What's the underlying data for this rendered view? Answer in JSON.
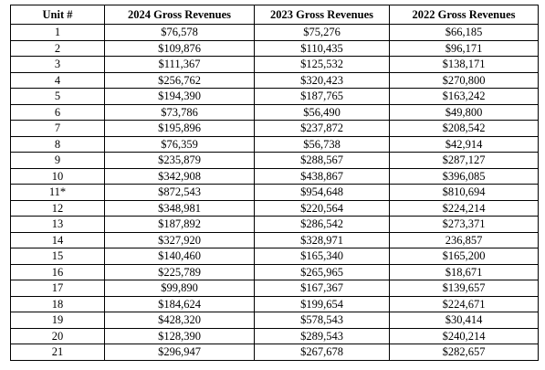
{
  "table": {
    "headers": [
      "Unit #",
      "2024 Gross Revenues",
      "2023 Gross Revenues",
      "2022 Gross Revenues"
    ],
    "rows": [
      [
        "1",
        "$76,578",
        "$75,276",
        "$66,185"
      ],
      [
        "2",
        "$109,876",
        "$110,435",
        "$96,171"
      ],
      [
        "3",
        "$111,367",
        "$125,532",
        "$138,171"
      ],
      [
        "4",
        "$256,762",
        "$320,423",
        "$270,800"
      ],
      [
        "5",
        "$194,390",
        "$187,765",
        "$163,242"
      ],
      [
        "6",
        "$73,786",
        "$56,490",
        "$49,800"
      ],
      [
        "7",
        "$195,896",
        "$237,872",
        "$208,542"
      ],
      [
        "8",
        "$76,359",
        "$56,738",
        "$42,914"
      ],
      [
        "9",
        "$235,879",
        "$288,567",
        "$287,127"
      ],
      [
        "10",
        "$342,908",
        "$438,867",
        "$396,085"
      ],
      [
        "11*",
        "$872,543",
        "$954,648",
        "$810,694"
      ],
      [
        "12",
        "$348,981",
        "$220,564",
        "$224,214"
      ],
      [
        "13",
        "$187,892",
        "$286,542",
        "$273,371"
      ],
      [
        "14",
        "$327,920",
        "$328,971",
        "236,857"
      ],
      [
        "15",
        "$140,460",
        "$165,340",
        "$165,200"
      ],
      [
        "16",
        "$225,789",
        "$265,965",
        "$18,671"
      ],
      [
        "17",
        "$99,890",
        "$167,367",
        "$139,657"
      ],
      [
        "18",
        "$184,624",
        "$199,654",
        "$224,671"
      ],
      [
        "19",
        "$428,320",
        "$578,543",
        "$30,414"
      ],
      [
        "20",
        "$128,390",
        "$289,543",
        "$240,214"
      ],
      [
        "21",
        "$296,947",
        "$267,678",
        "$282,657"
      ]
    ]
  }
}
